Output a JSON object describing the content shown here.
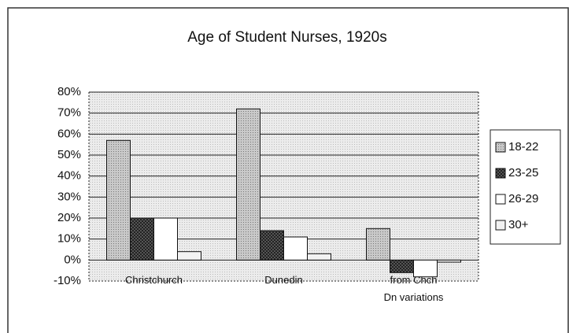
{
  "chart_data": {
    "type": "bar",
    "title": "Age of Student Nurses, 1920s",
    "categories": [
      "Christchurch",
      "Dunedin",
      "from Chch\nDn variations"
    ],
    "series": [
      {
        "name": "18-22",
        "color": "#c9c9c9",
        "values": [
          57,
          72,
          15
        ]
      },
      {
        "name": "23-25",
        "color": "#555555",
        "values": [
          20,
          14,
          -6
        ]
      },
      {
        "name": "26-29",
        "color": "#ffffff",
        "values": [
          20,
          11,
          -8
        ]
      },
      {
        "name": "30+",
        "color": "#f2f2f2",
        "values": [
          4,
          3,
          -1
        ]
      }
    ],
    "ylim": [
      -10,
      80
    ],
    "yticks": [
      {
        "value": -10,
        "label": "-10%"
      },
      {
        "value": 0,
        "label": "0%"
      },
      {
        "value": 10,
        "label": "10%"
      },
      {
        "value": 20,
        "label": "20%"
      },
      {
        "value": 30,
        "label": "30%"
      },
      {
        "value": 40,
        "label": "40%"
      },
      {
        "value": 50,
        "label": "50%"
      },
      {
        "value": 60,
        "label": "60%"
      },
      {
        "value": 70,
        "label": "70%"
      },
      {
        "value": 80,
        "label": "80%"
      }
    ],
    "grid": true,
    "legend": "right"
  }
}
